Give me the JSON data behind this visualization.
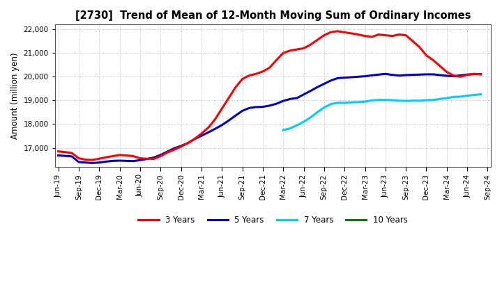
{
  "title": "[2730]  Trend of Mean of 12-Month Moving Sum of Ordinary Incomes",
  "ylabel": "Amount (million yen)",
  "ylim": [
    16200,
    22200
  ],
  "yticks": [
    17000,
    18000,
    19000,
    20000,
    21000,
    22000
  ],
  "background_color": "#ffffff",
  "plot_bg_color": "#ffffff",
  "series": {
    "3yr": {
      "color": "#ff0000",
      "label": "3 Years",
      "x": [
        0,
        1,
        2,
        3,
        4,
        5,
        6,
        7,
        8,
        9,
        10,
        11,
        12,
        13,
        14,
        15,
        16,
        17,
        18,
        19,
        20,
        21,
        22,
        23,
        24,
        25,
        26,
        27,
        28,
        29,
        30,
        31,
        32,
        33,
        34,
        35,
        36,
        37,
        38,
        39,
        40,
        41,
        42,
        43,
        44,
        45,
        46,
        47,
        48,
        49,
        50,
        51,
        52,
        53,
        54,
        55,
        56,
        57,
        58,
        59,
        60,
        61,
        62
      ],
      "y": [
        16850,
        16820,
        16780,
        16560,
        16500,
        16490,
        16540,
        16600,
        16650,
        16700,
        16680,
        16650,
        16560,
        16540,
        16530,
        16650,
        16800,
        16920,
        17050,
        17200,
        17380,
        17600,
        17850,
        18200,
        18650,
        19100,
        19550,
        19900,
        20050,
        20120,
        20220,
        20380,
        20700,
        21000,
        21100,
        21150,
        21200,
        21350,
        21550,
        21750,
        21880,
        21920,
        21870,
        21830,
        21780,
        21720,
        21680,
        21780,
        21750,
        21720,
        21780,
        21750,
        21500,
        21250,
        20900,
        20700,
        20450,
        20200,
        20050,
        20000,
        20080,
        20120,
        20100
      ]
    },
    "5yr": {
      "color": "#0000cc",
      "label": "5 Years",
      "x": [
        0,
        1,
        2,
        3,
        4,
        5,
        6,
        7,
        8,
        9,
        10,
        11,
        12,
        13,
        14,
        15,
        16,
        17,
        18,
        19,
        20,
        21,
        22,
        23,
        24,
        25,
        26,
        27,
        28,
        29,
        30,
        31,
        32,
        33,
        34,
        35,
        36,
        37,
        38,
        39,
        40,
        41,
        42,
        43,
        44,
        45,
        46,
        47,
        48,
        49,
        50,
        51,
        52,
        53,
        54,
        55,
        56,
        57,
        58,
        59,
        60,
        61,
        62
      ],
      "y": [
        16680,
        16660,
        16640,
        16400,
        16380,
        16360,
        16380,
        16420,
        16450,
        16460,
        16450,
        16440,
        16480,
        16530,
        16590,
        16700,
        16840,
        16980,
        17080,
        17200,
        17370,
        17510,
        17650,
        17800,
        17960,
        18150,
        18360,
        18560,
        18680,
        18720,
        18730,
        18780,
        18860,
        18980,
        19060,
        19100,
        19250,
        19400,
        19560,
        19700,
        19840,
        19940,
        19960,
        19980,
        20000,
        20020,
        20060,
        20090,
        20120,
        20080,
        20050,
        20070,
        20080,
        20090,
        20100,
        20100,
        20070,
        20040,
        20020,
        20060,
        20090,
        20110,
        20110
      ]
    },
    "7yr": {
      "color": "#00ccff",
      "label": "7 Years",
      "x": [
        33,
        34,
        35,
        36,
        37,
        38,
        39,
        40,
        41,
        42,
        43,
        44,
        45,
        46,
        47,
        48,
        49,
        50,
        51,
        52,
        53,
        54,
        55,
        56,
        57,
        58,
        59,
        60,
        61,
        62
      ],
      "y": [
        17750,
        17820,
        17950,
        18100,
        18280,
        18500,
        18700,
        18850,
        18900,
        18900,
        18920,
        18930,
        18950,
        19000,
        19020,
        19020,
        19010,
        18990,
        18980,
        18990,
        18990,
        19010,
        19020,
        19060,
        19100,
        19150,
        19160,
        19200,
        19230,
        19260
      ]
    },
    "10yr": {
      "color": "#008000",
      "label": "10 Years",
      "x": [],
      "y": []
    }
  },
  "xtick_labels": [
    "Jun-19",
    "Sep-19",
    "Dec-19",
    "Mar-20",
    "Jun-20",
    "Sep-20",
    "Dec-20",
    "Mar-21",
    "Jun-21",
    "Sep-21",
    "Dec-21",
    "Mar-22",
    "Jun-22",
    "Sep-22",
    "Dec-22",
    "Mar-23",
    "Jun-23",
    "Sep-23",
    "Dec-23",
    "Mar-24",
    "Jun-24",
    "Sep-24"
  ],
  "xtick_positions": [
    0,
    3,
    6,
    9,
    12,
    15,
    18,
    21,
    24,
    27,
    30,
    33,
    36,
    39,
    42,
    45,
    48,
    51,
    54,
    57,
    60,
    63
  ],
  "grid_color": "#aaaaaa",
  "grid_style": ":",
  "line_width": 2.2
}
